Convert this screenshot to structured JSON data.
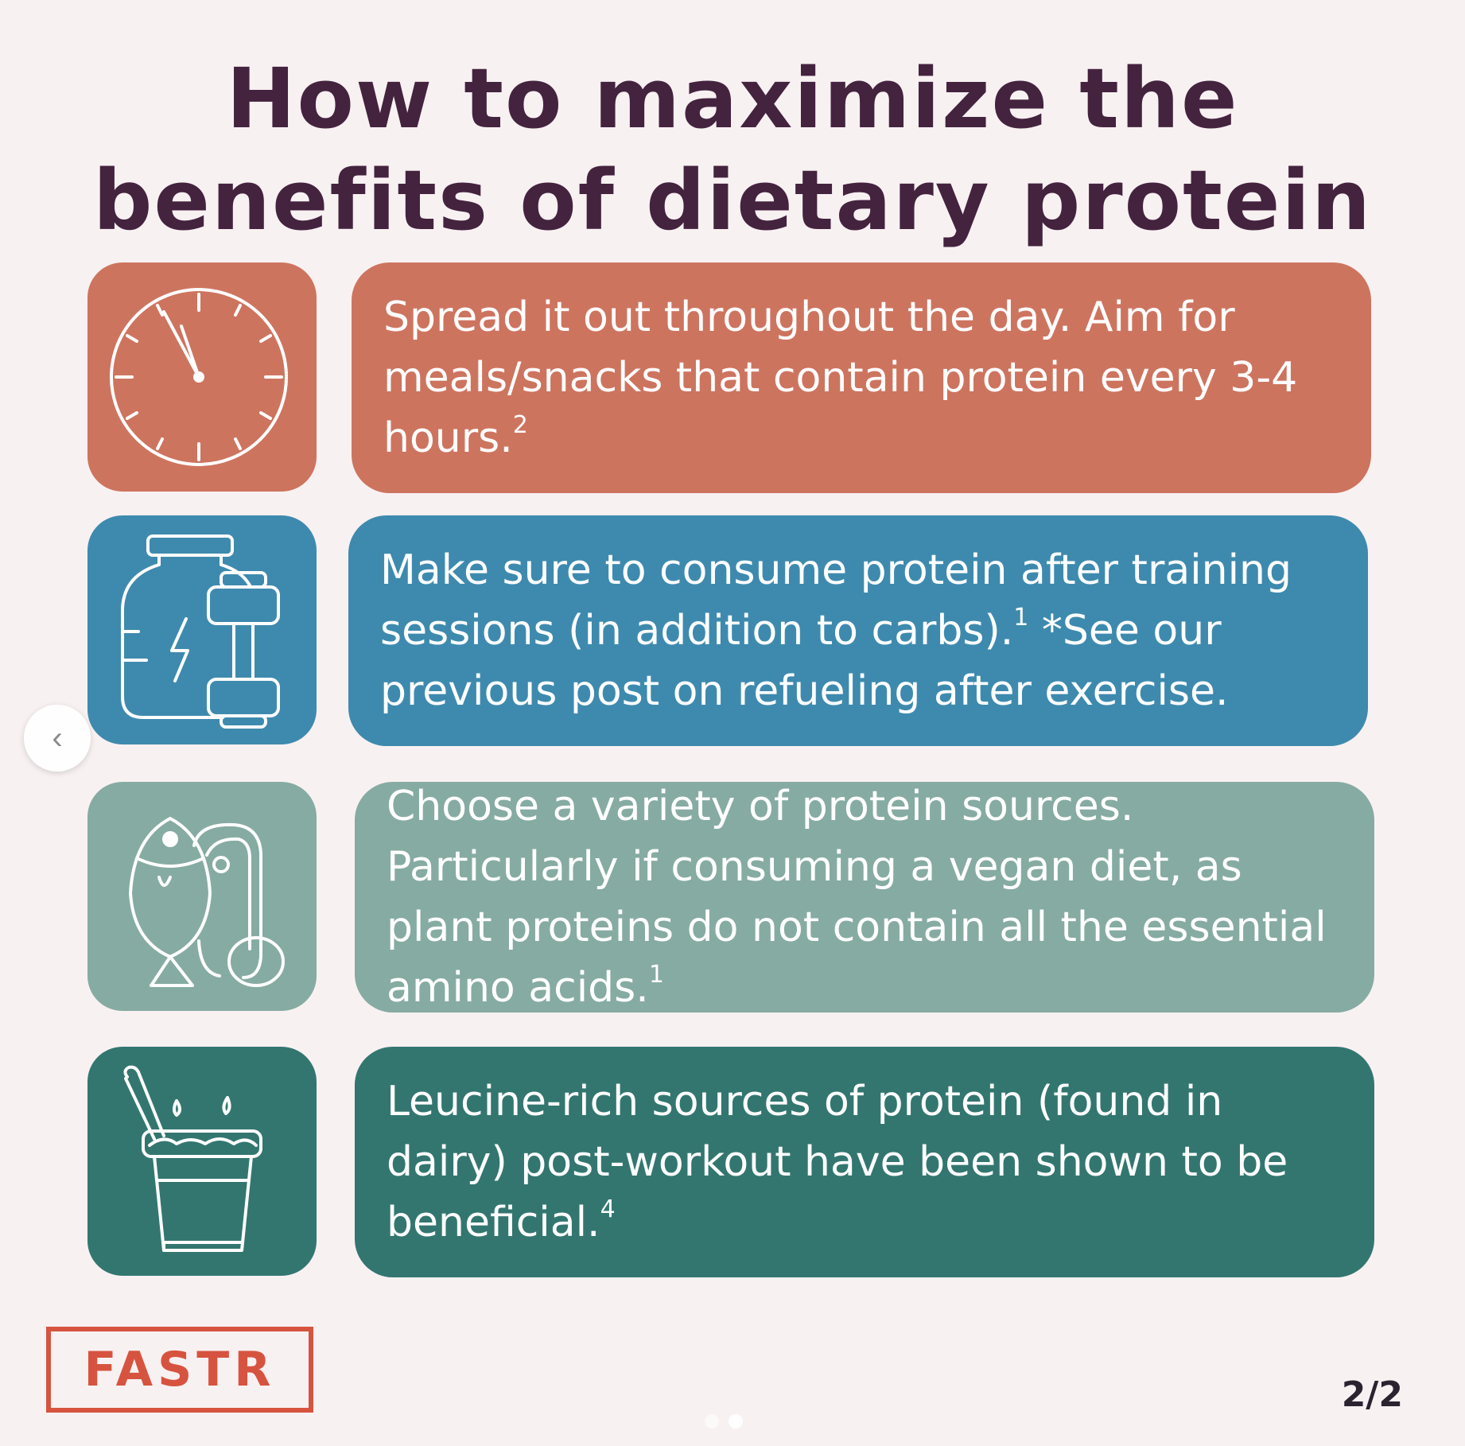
{
  "title": {
    "line1": "How to maximize the",
    "line2": "benefits of dietary protein"
  },
  "tips": [
    {
      "text": "Spread it out throughout the day. Aim for meals/snacks that contain protein every 3-4 hours.",
      "ref": "2",
      "icon": "clock-icon",
      "color": "#cd745f"
    },
    {
      "text": "Make sure to consume protein after training sessions (in addition to carbs).",
      "ref": "1",
      "text_after": "*See our previous post on refueling after exercise.",
      "icon": "protein-jar-dumbbell-icon",
      "color": "#3e8aae"
    },
    {
      "text": "Choose a variety of protein sources. Particularly if consuming a vegan diet, as plant proteins do not contain all the essential amino acids.",
      "ref": "1",
      "icon": "fish-meat-egg-icon",
      "color": "#86aba2"
    },
    {
      "text": "Leucine-rich sources of protein (found in dairy) post-workout have been shown to be beneficial.",
      "ref": "4",
      "icon": "yogurt-icon",
      "color": "#337670"
    }
  ],
  "logo": {
    "text": "FASTR"
  },
  "page_indicator": "2/2",
  "carousel": {
    "prev_icon": "chevron-left-icon",
    "dots": 2,
    "active_dot": 2
  }
}
